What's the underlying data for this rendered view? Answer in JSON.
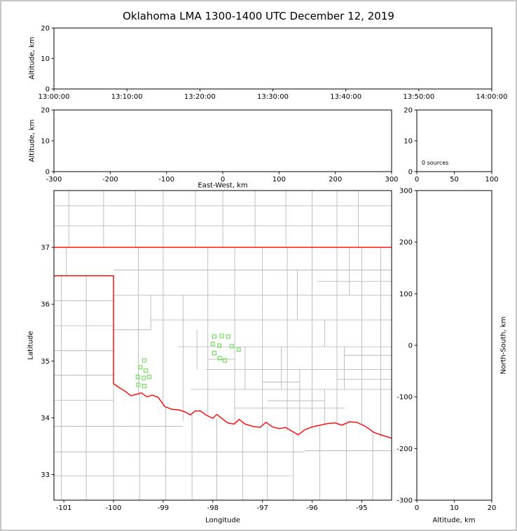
{
  "figure": {
    "title": "Oklahoma LMA 1300-1400 UTC December 12, 2019",
    "background": "#ffffff",
    "frame_border_color": "#c6c6c6",
    "axis_color": "#000000",
    "county_color": "#b0b0b0",
    "state_border_color": "#ff0000",
    "station_color": "#6ae052"
  },
  "chart_data": [
    {
      "id": "time_height_panel",
      "type": "scatter",
      "xlabel": "",
      "ylabel": "Altitude, km",
      "xlim": [
        0,
        6
      ],
      "xticks": [
        0,
        1,
        2,
        3,
        4,
        5,
        6
      ],
      "x_tick_labels": [
        "13:00:00",
        "13:10:00",
        "13:20:00",
        "13:30:00",
        "13:40:00",
        "13:50:00",
        "14:00:00"
      ],
      "ylim": [
        0,
        20
      ],
      "yticks": [
        0,
        10,
        20
      ],
      "points": []
    },
    {
      "id": "ew_height_panel",
      "type": "scatter",
      "xlabel": "East-West, km",
      "ylabel": "Altitude, km",
      "xlim": [
        -300,
        300
      ],
      "xticks": [
        -300,
        -200,
        -100,
        0,
        100,
        200,
        300
      ],
      "ylim": [
        0,
        20
      ],
      "yticks": [
        0,
        10,
        20
      ],
      "points": []
    },
    {
      "id": "altitude_histogram_panel",
      "type": "line",
      "xlabel": "",
      "ylabel": "",
      "xlim": [
        0,
        100
      ],
      "xticks": [
        0,
        50,
        100
      ],
      "ylim": [
        0,
        20
      ],
      "yticks": [
        0,
        10,
        20
      ],
      "annotation": "0 sources",
      "points": []
    },
    {
      "id": "map_panel",
      "type": "scatter",
      "xlabel": "Longitude",
      "ylabel": "Latitude",
      "xlim": [
        -101.2,
        -94.4
      ],
      "xticks": [
        -101,
        -100,
        -99,
        -98,
        -97,
        -96,
        -95
      ],
      "ylim": [
        32.55,
        38.0
      ],
      "yticks": [
        33,
        34,
        35,
        36,
        37
      ],
      "stations": [
        [
          -99.38,
          35.01
        ],
        [
          -99.46,
          34.89
        ],
        [
          -99.35,
          34.83
        ],
        [
          -99.51,
          34.72
        ],
        [
          -99.39,
          34.7
        ],
        [
          -99.28,
          34.72
        ],
        [
          -99.5,
          34.58
        ],
        [
          -99.38,
          34.56
        ],
        [
          -97.97,
          35.43
        ],
        [
          -97.82,
          35.44
        ],
        [
          -97.69,
          35.43
        ],
        [
          -98.0,
          35.3
        ],
        [
          -97.87,
          35.27
        ],
        [
          -97.62,
          35.26
        ],
        [
          -97.48,
          35.2
        ],
        [
          -97.97,
          35.14
        ],
        [
          -97.86,
          35.05
        ],
        [
          -97.76,
          35.01
        ]
      ],
      "state_border": [
        [
          [
            -101.2,
            37.0
          ],
          [
            -94.4,
            37.0
          ]
        ],
        [
          [
            -101.2,
            36.5
          ],
          [
            -100.0,
            36.5
          ],
          [
            -100.0,
            34.6
          ],
          [
            -99.9,
            34.54
          ],
          [
            -99.77,
            34.47
          ],
          [
            -99.65,
            34.39
          ],
          [
            -99.55,
            34.41
          ],
          [
            -99.44,
            34.44
          ],
          [
            -99.33,
            34.37
          ],
          [
            -99.22,
            34.4
          ],
          [
            -99.1,
            34.36
          ],
          [
            -98.97,
            34.2
          ],
          [
            -98.83,
            34.15
          ],
          [
            -98.68,
            34.14
          ],
          [
            -98.55,
            34.1
          ],
          [
            -98.45,
            34.05
          ],
          [
            -98.36,
            34.12
          ],
          [
            -98.25,
            34.12
          ],
          [
            -98.12,
            34.04
          ],
          [
            -98.0,
            33.99
          ],
          [
            -97.92,
            34.06
          ],
          [
            -97.82,
            33.99
          ],
          [
            -97.7,
            33.91
          ],
          [
            -97.57,
            33.89
          ],
          [
            -97.47,
            33.97
          ],
          [
            -97.35,
            33.89
          ],
          [
            -97.2,
            33.85
          ],
          [
            -97.05,
            33.83
          ],
          [
            -96.93,
            33.92
          ],
          [
            -96.8,
            33.84
          ],
          [
            -96.66,
            33.81
          ],
          [
            -96.53,
            33.83
          ],
          [
            -96.4,
            33.76
          ],
          [
            -96.28,
            33.7
          ],
          [
            -96.15,
            33.79
          ],
          [
            -96.0,
            33.84
          ],
          [
            -95.84,
            33.87
          ],
          [
            -95.68,
            33.9
          ],
          [
            -95.54,
            33.91
          ],
          [
            -95.4,
            33.87
          ],
          [
            -95.25,
            33.93
          ],
          [
            -95.1,
            33.92
          ],
          [
            -94.93,
            33.85
          ],
          [
            -94.75,
            33.74
          ],
          [
            -94.58,
            33.69
          ],
          [
            -94.4,
            33.64
          ]
        ]
      ],
      "county_lines": {
        "vertical": [
          [
            -100.9,
            37.0,
            38.0
          ],
          [
            -100.2,
            37.0,
            38.0
          ],
          [
            -99.56,
            37.0,
            38.0
          ],
          [
            -99.0,
            37.0,
            38.0
          ],
          [
            -98.35,
            37.0,
            38.0
          ],
          [
            -97.8,
            37.0,
            38.0
          ],
          [
            -97.15,
            37.0,
            38.0
          ],
          [
            -96.53,
            37.0,
            38.0
          ],
          [
            -96.0,
            37.0,
            38.0
          ],
          [
            -95.5,
            37.0,
            38.0
          ],
          [
            -95.07,
            37.0,
            38.0
          ],
          [
            -101.05,
            32.55,
            36.5
          ],
          [
            -100.55,
            32.55,
            36.5
          ],
          [
            -100.0,
            32.55,
            34.6
          ],
          [
            -100.95,
            36.5,
            37.0
          ],
          [
            -99.47,
            32.55,
            34.44
          ],
          [
            -98.95,
            32.55,
            34.18
          ],
          [
            -98.42,
            32.55,
            34.08
          ],
          [
            -97.92,
            32.55,
            33.99
          ],
          [
            -97.4,
            32.55,
            33.9
          ],
          [
            -96.9,
            32.55,
            33.86
          ],
          [
            -96.38,
            32.55,
            33.72
          ],
          [
            -95.85,
            32.55,
            33.86
          ],
          [
            -95.31,
            32.55,
            33.9
          ],
          [
            -94.78,
            32.55,
            33.75
          ],
          [
            -99.5,
            34.42,
            37.0
          ],
          [
            -99.25,
            35.55,
            36.16
          ],
          [
            -99.0,
            34.2,
            37.0
          ],
          [
            -98.6,
            33.95,
            36.16
          ],
          [
            -98.1,
            34.06,
            37.0
          ],
          [
            -97.56,
            33.92,
            37.0
          ],
          [
            -97.0,
            33.86,
            37.0
          ],
          [
            -96.5,
            33.77,
            37.0
          ],
          [
            -96.0,
            33.8,
            37.0
          ],
          [
            -95.5,
            33.88,
            37.0
          ],
          [
            -95.0,
            33.87,
            37.0
          ],
          [
            -94.62,
            33.65,
            37.0
          ],
          [
            -98.32,
            34.85,
            35.55
          ],
          [
            -97.35,
            34.5,
            35.25
          ],
          [
            -96.25,
            33.77,
            34.85
          ],
          [
            -95.75,
            33.88,
            34.5
          ],
          [
            -95.35,
            34.5,
            35.25
          ],
          [
            -96.62,
            34.5,
            35.25
          ],
          [
            -95.25,
            36.16,
            37.0
          ],
          [
            -96.3,
            35.72,
            36.6
          ],
          [
            -95.75,
            35.25,
            35.72
          ]
        ],
        "horizontal": [
          [
            37.38,
            -101.2,
            -94.4
          ],
          [
            37.73,
            -101.2,
            -94.4
          ],
          [
            36.06,
            -101.2,
            -100.0
          ],
          [
            35.62,
            -101.2,
            -100.0
          ],
          [
            35.18,
            -101.2,
            -100.0
          ],
          [
            34.75,
            -101.2,
            -100.0
          ],
          [
            34.31,
            -101.2,
            -100.0
          ],
          [
            33.85,
            -101.2,
            -98.6
          ],
          [
            33.4,
            -101.2,
            -96.15
          ],
          [
            32.98,
            -101.2,
            -96.4
          ],
          [
            33.42,
            -96.15,
            -94.4
          ],
          [
            36.6,
            -100.0,
            -94.4
          ],
          [
            36.16,
            -100.0,
            -94.4
          ],
          [
            35.72,
            -99.25,
            -94.4
          ],
          [
            35.55,
            -100.0,
            -99.25
          ],
          [
            35.25,
            -98.7,
            -94.4
          ],
          [
            34.85,
            -98.15,
            -94.4
          ],
          [
            34.5,
            -98.45,
            -94.4
          ],
          [
            34.17,
            -97.56,
            -95.35
          ],
          [
            35.03,
            -98.1,
            -97.56
          ],
          [
            34.63,
            -97.0,
            -96.25
          ],
          [
            34.3,
            -96.9,
            -95.75
          ],
          [
            34.68,
            -95.5,
            -94.4
          ],
          [
            35.1,
            -95.35,
            -94.4
          ],
          [
            36.4,
            -95.9,
            -94.4
          ]
        ]
      }
    },
    {
      "id": "ns_height_panel",
      "type": "scatter",
      "xlabel": "Altitude, km",
      "ylabel": "North-South, km",
      "xlim": [
        0,
        20
      ],
      "xticks": [
        0,
        10,
        20
      ],
      "ylim": [
        -300,
        300
      ],
      "yticks": [
        -300,
        -200,
        -100,
        0,
        100,
        200,
        300
      ],
      "points": []
    }
  ]
}
